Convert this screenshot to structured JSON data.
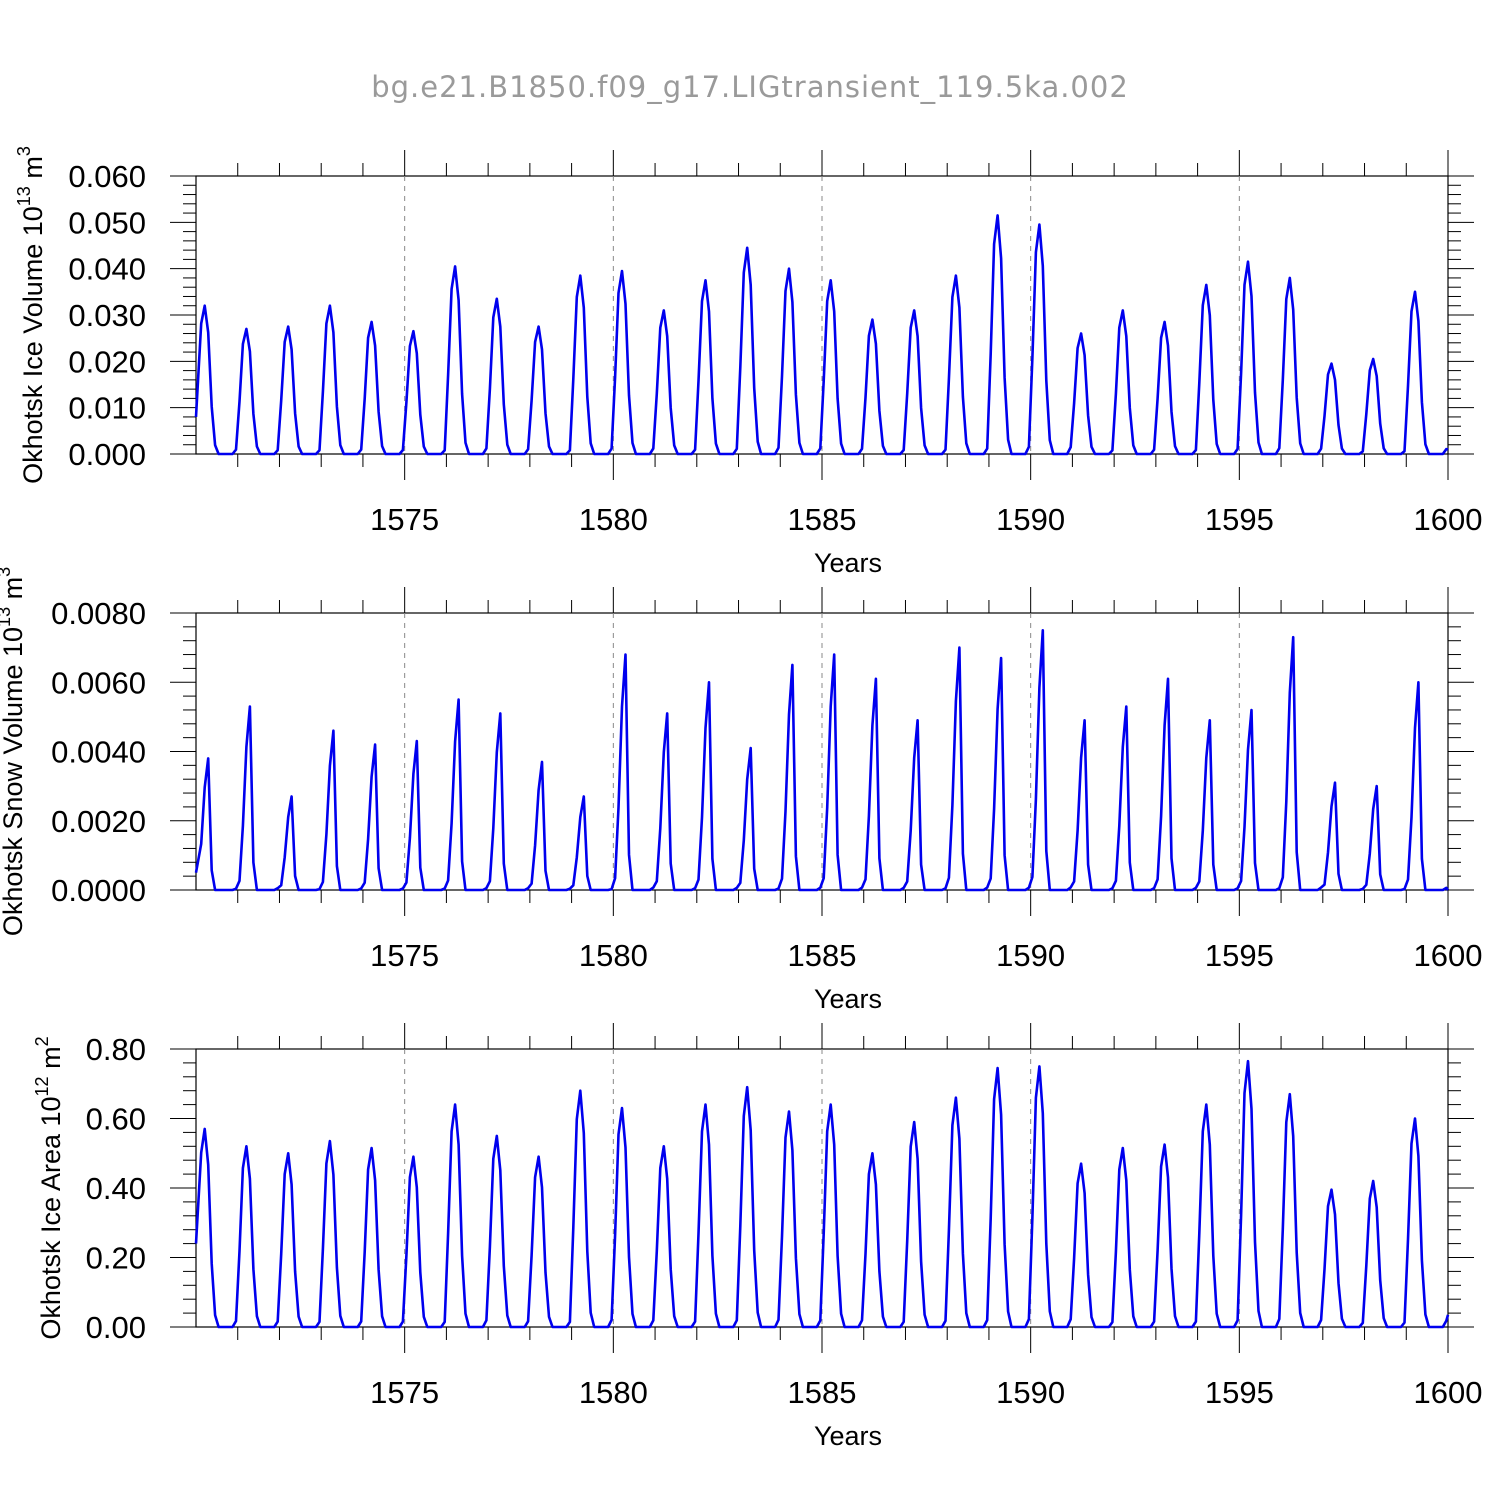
{
  "title": "bg.e21.B1850.f09_g17.LIGtransient_119.5ka.002",
  "colors": {
    "line": "#0000ee",
    "axis": "#000000",
    "grid": "#888888",
    "title": "#9a9a9a"
  },
  "chart_data": [
    {
      "type": "line",
      "panel": "ice-volume",
      "ylabel": "Okhotsk Ice Volume 10",
      "ylabel_exponent": "13",
      "ylabel_unit": " m",
      "ylabel_unit_exponent": "3",
      "xlabel": "Years",
      "xlim": [
        1570,
        1600
      ],
      "ylim": [
        0,
        0.06
      ],
      "yticks": [
        "0.000",
        "0.010",
        "0.020",
        "0.030",
        "0.040",
        "0.050",
        "0.060"
      ],
      "yticks_values": [
        0,
        0.01,
        0.02,
        0.03,
        0.04,
        0.05,
        0.06
      ],
      "xticks": [
        "1575",
        "1580",
        "1585",
        "1590",
        "1595",
        "1600"
      ],
      "xticks_values": [
        1575,
        1580,
        1585,
        1590,
        1595,
        1600
      ],
      "series": [
        {
          "name": "Okhotsk Ice Volume",
          "peaks": [
            0.032,
            0.027,
            0.0275,
            0.032,
            0.0285,
            0.0265,
            0.0405,
            0.0335,
            0.0275,
            0.0385,
            0.0395,
            0.031,
            0.0375,
            0.0445,
            0.04,
            0.0375,
            0.029,
            0.031,
            0.0385,
            0.0515,
            0.0495,
            0.026,
            0.031,
            0.0285,
            0.0365,
            0.0415,
            0.038,
            0.0195,
            0.0205,
            0.035
          ],
          "start_value": 0.008,
          "end_value": 0.001
        }
      ]
    },
    {
      "type": "line",
      "panel": "snow-volume",
      "ylabel": "Okhotsk Snow Volume 10",
      "ylabel_exponent": "13",
      "ylabel_unit": " m",
      "ylabel_unit_exponent": "3",
      "xlabel": "Years",
      "xlim": [
        1570,
        1600
      ],
      "ylim": [
        0,
        0.008
      ],
      "yticks": [
        "0.0000",
        "0.0020",
        "0.0040",
        "0.0060",
        "0.0080"
      ],
      "yticks_values": [
        0,
        0.002,
        0.004,
        0.006,
        0.008
      ],
      "xticks": [
        "1575",
        "1580",
        "1585",
        "1590",
        "1595",
        "1600"
      ],
      "xticks_values": [
        1575,
        1580,
        1585,
        1590,
        1595,
        1600
      ],
      "series": [
        {
          "name": "Okhotsk Snow Volume",
          "peaks": [
            0.0038,
            0.0053,
            0.0027,
            0.0046,
            0.0042,
            0.0043,
            0.0055,
            0.0051,
            0.0037,
            0.0027,
            0.0068,
            0.0051,
            0.006,
            0.0041,
            0.0065,
            0.0068,
            0.0061,
            0.0049,
            0.007,
            0.0067,
            0.0075,
            0.0049,
            0.0053,
            0.0061,
            0.0049,
            0.0052,
            0.0073,
            0.0031,
            0.003,
            0.006
          ],
          "start_value": 0.0005,
          "end_value": 0.0
        }
      ]
    },
    {
      "type": "line",
      "panel": "ice-area",
      "ylabel": "Okhotsk Ice Area 10",
      "ylabel_exponent": "12",
      "ylabel_unit": " m",
      "ylabel_unit_exponent": "2",
      "xlabel": "Years",
      "xlim": [
        1570,
        1600
      ],
      "ylim": [
        0,
        0.8
      ],
      "yticks": [
        "0.00",
        "0.20",
        "0.40",
        "0.60",
        "0.80"
      ],
      "yticks_values": [
        0,
        0.2,
        0.4,
        0.6,
        0.8
      ],
      "xticks": [
        "1575",
        "1580",
        "1585",
        "1590",
        "1595",
        "1600"
      ],
      "xticks_values": [
        1575,
        1580,
        1585,
        1590,
        1595,
        1600
      ],
      "series": [
        {
          "name": "Okhotsk Ice Area",
          "peaks": [
            0.57,
            0.52,
            0.5,
            0.535,
            0.515,
            0.49,
            0.64,
            0.55,
            0.49,
            0.68,
            0.63,
            0.52,
            0.64,
            0.69,
            0.62,
            0.64,
            0.5,
            0.59,
            0.66,
            0.745,
            0.75,
            0.47,
            0.515,
            0.525,
            0.64,
            0.765,
            0.67,
            0.395,
            0.42,
            0.6
          ],
          "start_value": 0.24,
          "end_value": 0.035
        }
      ]
    }
  ]
}
